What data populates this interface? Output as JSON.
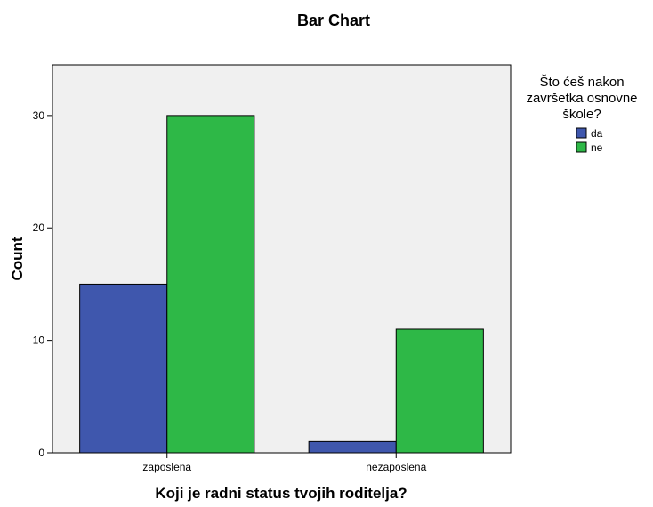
{
  "chart_data": {
    "type": "bar",
    "title": "Bar Chart",
    "xlabel": "Koji je radni status tvojih roditelja?",
    "ylabel": "Count",
    "categories": [
      "zaposlena",
      "nezaposlena"
    ],
    "series": [
      {
        "name": "da",
        "values": [
          15,
          1
        ],
        "color": "#3f57ad"
      },
      {
        "name": "ne",
        "values": [
          30,
          11
        ],
        "color": "#2eb847"
      }
    ],
    "ylim": [
      0,
      34.5
    ],
    "yticks": [
      0,
      10,
      20,
      30
    ],
    "grid": false,
    "plot_background": "#f0f0f0",
    "legend": {
      "title_lines": [
        "Što ćeš nakon",
        "završetka osnovne",
        "škole?"
      ],
      "placement": "top-right outside"
    }
  }
}
